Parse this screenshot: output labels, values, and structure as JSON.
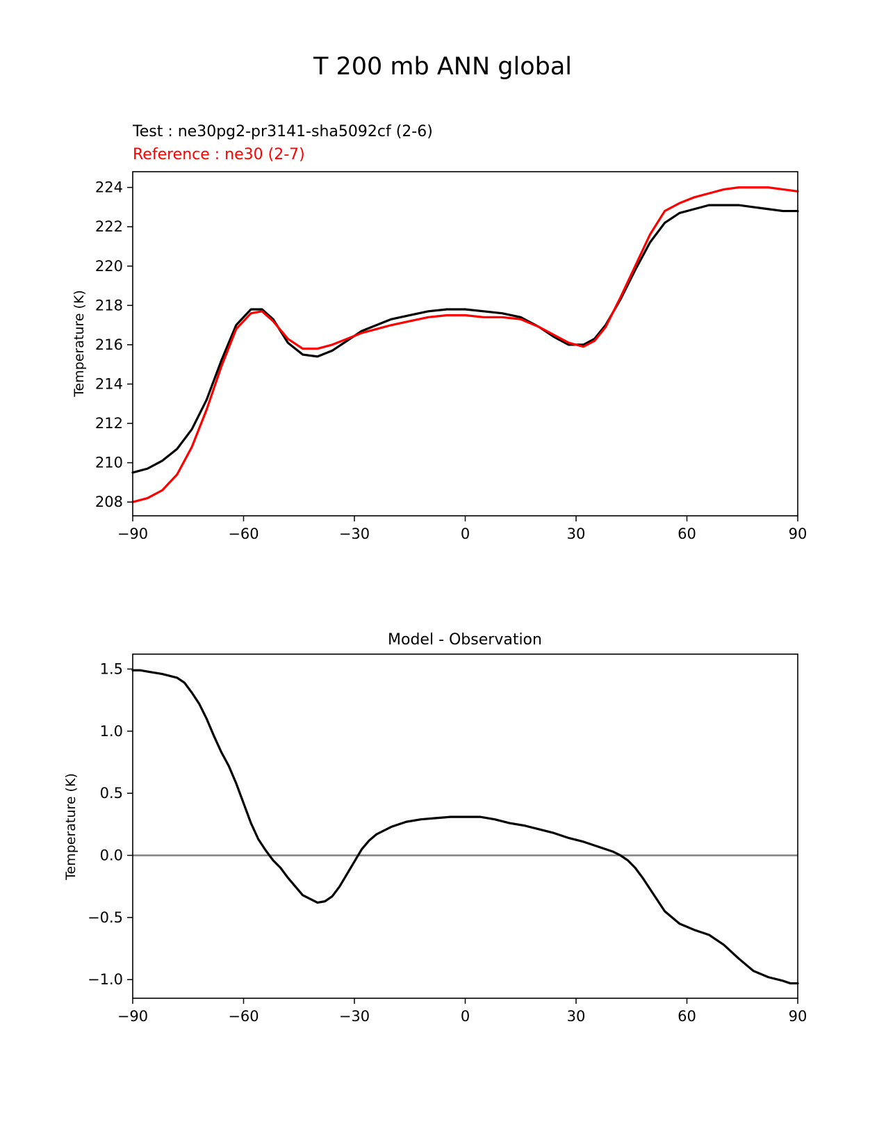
{
  "figure_title": "T 200 mb ANN global",
  "colors": {
    "test": "#000000",
    "reference": "#ff0000",
    "zero_line": "#808080"
  },
  "chart_data": [
    {
      "type": "line",
      "title": "",
      "test_label": "Test : ne30pg2-pr3141-sha5092cf (2-6)",
      "reference_label": "Reference : ne30 (2-7)",
      "xlabel": "",
      "ylabel": "Temperature (K)",
      "xlim": [
        -90,
        90
      ],
      "ylim": [
        207.3,
        224.8
      ],
      "xticks": [
        -90,
        -60,
        -30,
        0,
        30,
        60,
        90
      ],
      "xtick_labels": [
        "−90",
        "−60",
        "−30",
        "0",
        "30",
        "60",
        "90"
      ],
      "yticks": [
        208,
        210,
        212,
        214,
        216,
        218,
        220,
        222,
        224
      ],
      "ytick_labels": [
        "208",
        "210",
        "212",
        "214",
        "216",
        "218",
        "220",
        "222",
        "224"
      ],
      "series": [
        {
          "name": "Test",
          "x": [
            -90,
            -86,
            -82,
            -78,
            -74,
            -70,
            -66,
            -62,
            -58,
            -55,
            -52,
            -48,
            -44,
            -40,
            -36,
            -32,
            -28,
            -24,
            -20,
            -15,
            -10,
            -5,
            0,
            5,
            10,
            15,
            20,
            24,
            28,
            32,
            35,
            38,
            42,
            46,
            50,
            54,
            58,
            62,
            66,
            70,
            74,
            78,
            82,
            86,
            90
          ],
          "y": [
            209.5,
            209.7,
            210.1,
            210.7,
            211.7,
            213.2,
            215.2,
            217.0,
            217.8,
            217.8,
            217.3,
            216.1,
            215.5,
            215.4,
            215.7,
            216.2,
            216.7,
            217.0,
            217.3,
            217.5,
            217.7,
            217.8,
            217.8,
            217.7,
            217.6,
            217.4,
            216.9,
            216.4,
            216.0,
            216.0,
            216.3,
            217.0,
            218.3,
            219.8,
            221.2,
            222.2,
            222.7,
            222.9,
            223.1,
            223.1,
            223.1,
            223.0,
            222.9,
            222.8,
            222.8
          ]
        },
        {
          "name": "Reference",
          "x": [
            -90,
            -86,
            -82,
            -78,
            -74,
            -70,
            -66,
            -62,
            -58,
            -55,
            -52,
            -48,
            -44,
            -40,
            -36,
            -32,
            -28,
            -24,
            -20,
            -15,
            -10,
            -5,
            0,
            5,
            10,
            15,
            20,
            24,
            28,
            32,
            35,
            38,
            42,
            46,
            50,
            54,
            58,
            62,
            66,
            70,
            74,
            78,
            82,
            86,
            90
          ],
          "y": [
            208.0,
            208.2,
            208.6,
            209.4,
            210.8,
            212.7,
            214.9,
            216.8,
            217.6,
            217.7,
            217.2,
            216.3,
            215.8,
            215.8,
            216.0,
            216.3,
            216.6,
            216.8,
            217.0,
            217.2,
            217.4,
            217.5,
            217.5,
            217.4,
            217.4,
            217.3,
            216.9,
            216.5,
            216.1,
            215.9,
            216.2,
            216.9,
            218.4,
            220.0,
            221.6,
            222.8,
            223.2,
            223.5,
            223.7,
            223.9,
            224.0,
            224.0,
            224.0,
            223.9,
            223.8
          ]
        }
      ]
    },
    {
      "type": "line",
      "title": "Model - Observation",
      "xlabel": "",
      "ylabel": "Temperature (K)",
      "xlim": [
        -90,
        90
      ],
      "ylim": [
        -1.15,
        1.62
      ],
      "xticks": [
        -90,
        -60,
        -30,
        0,
        30,
        60,
        90
      ],
      "xtick_labels": [
        "−90",
        "−60",
        "−30",
        "0",
        "30",
        "60",
        "90"
      ],
      "yticks": [
        -1.0,
        -0.5,
        0.0,
        0.5,
        1.0,
        1.5
      ],
      "ytick_labels": [
        "−1.0",
        "−0.5",
        "0.0",
        "0.5",
        "1.0",
        "1.5"
      ],
      "zero_line": 0,
      "series": [
        {
          "name": "Model - Observation",
          "x": [
            -90,
            -88,
            -86,
            -82,
            -78,
            -76,
            -74,
            -72,
            -70,
            -68,
            -66,
            -64,
            -62,
            -60,
            -58,
            -56,
            -54,
            -52,
            -50,
            -48,
            -44,
            -40,
            -38,
            -36,
            -34,
            -32,
            -30,
            -28,
            -26,
            -24,
            -20,
            -16,
            -12,
            -8,
            -4,
            0,
            4,
            8,
            12,
            16,
            20,
            24,
            28,
            32,
            36,
            40,
            42,
            44,
            46,
            48,
            50,
            54,
            58,
            62,
            66,
            70,
            74,
            78,
            82,
            86,
            88,
            90
          ],
          "y": [
            1.49,
            1.49,
            1.48,
            1.46,
            1.43,
            1.39,
            1.31,
            1.22,
            1.1,
            0.96,
            0.83,
            0.72,
            0.58,
            0.42,
            0.26,
            0.13,
            0.04,
            -0.04,
            -0.1,
            -0.18,
            -0.32,
            -0.38,
            -0.37,
            -0.33,
            -0.25,
            -0.15,
            -0.05,
            0.05,
            0.12,
            0.17,
            0.23,
            0.27,
            0.29,
            0.3,
            0.31,
            0.31,
            0.31,
            0.29,
            0.26,
            0.24,
            0.21,
            0.18,
            0.14,
            0.11,
            0.07,
            0.03,
            0.0,
            -0.04,
            -0.1,
            -0.18,
            -0.27,
            -0.45,
            -0.55,
            -0.6,
            -0.64,
            -0.72,
            -0.83,
            -0.93,
            -0.98,
            -1.01,
            -1.03,
            -1.03
          ]
        }
      ]
    }
  ]
}
